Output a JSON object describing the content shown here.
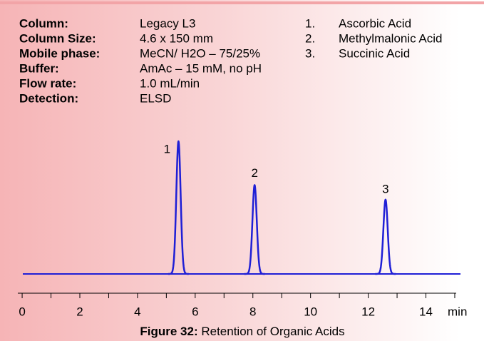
{
  "header": {
    "rows": [
      {
        "label": "Column:",
        "value": "Legacy L3"
      },
      {
        "label": "Column Size:",
        "value": "4.6 x 150 mm"
      },
      {
        "label": "Mobile phase:",
        "value": "MeCN/ H2O – 75/25%"
      },
      {
        "label": "Buffer:",
        "value": "AmAc – 15 mM, no pH"
      },
      {
        "label": "Flow rate:",
        "value": "1.0 mL/min"
      },
      {
        "label": "Detection:",
        "value": "ELSD"
      }
    ],
    "compounds": [
      {
        "number": "1.",
        "name": "Ascorbic Acid"
      },
      {
        "number": "2.",
        "name": "Methylmalonic Acid"
      },
      {
        "number": "3.",
        "name": "Succinic Acid"
      }
    ]
  },
  "chart_data": {
    "type": "chromatogram",
    "peaks": [
      {
        "label": "1",
        "x": 5.42,
        "value": 100
      },
      {
        "label": "2",
        "x": 8.06,
        "value": 67
      },
      {
        "label": "3",
        "x": 12.6,
        "value": 56
      }
    ],
    "color": "#1f1fd6",
    "xlim": [
      -0.15,
      15.05
    ],
    "ylim": [
      0,
      100
    ],
    "xticks": [
      0,
      2,
      4,
      6,
      8,
      10,
      12,
      14
    ],
    "xminorticks": [
      1,
      3,
      5,
      7,
      9,
      11,
      13,
      15
    ],
    "x_label": "min"
  },
  "caption": {
    "bold": "Figure 32:",
    "text": "Retention of Organic Acids"
  }
}
